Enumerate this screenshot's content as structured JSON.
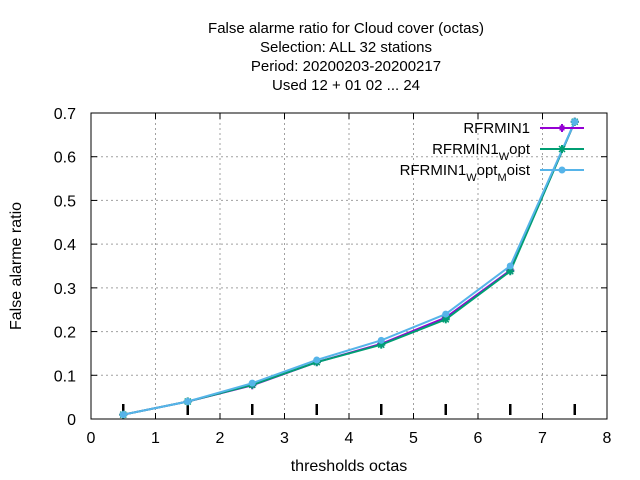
{
  "chart_data": {
    "type": "line",
    "title_lines": [
      "False alarme ratio  for Cloud cover (octas)",
      "Selection: ALL     32 stations",
      "Period: 20200203-20200217",
      "Used  12 + 01 02 ... 24"
    ],
    "xlabel": "thresholds octas",
    "ylabel": "False alarme ratio",
    "xlim": [
      0,
      8
    ],
    "ylim": [
      0,
      0.7
    ],
    "xticks": [
      0,
      1,
      2,
      3,
      4,
      5,
      6,
      7,
      8
    ],
    "yticks": [
      0,
      0.1,
      0.2,
      0.3,
      0.4,
      0.5,
      0.6,
      0.7
    ],
    "xtick_labels": [
      "0",
      "1",
      "2",
      "3",
      "4",
      "5",
      "6",
      "7",
      "8"
    ],
    "ytick_labels": [
      "0",
      "0.1",
      "0.2",
      "0.3",
      "0.4",
      "0.5",
      "0.6",
      "0.7"
    ],
    "grid": true,
    "legend_position": "top-right",
    "count_marker_x": [
      0.5,
      1.5,
      2.5,
      3.5,
      4.5,
      5.5,
      6.5,
      7.5
    ],
    "x": [
      0.5,
      1.5,
      2.5,
      3.5,
      4.5,
      5.5,
      6.5,
      7.5
    ],
    "series": [
      {
        "name": "RFRMIN1",
        "legend_parts": [
          {
            "text": "RFRMIN1",
            "sub": false
          }
        ],
        "color": "#9400d3",
        "marker": "plus",
        "values": [
          0.01,
          0.04,
          0.077,
          0.13,
          0.172,
          0.232,
          0.34,
          0.68
        ]
      },
      {
        "name": "RFRMIN1_Wopt",
        "legend_parts": [
          {
            "text": "RFRMIN1",
            "sub": false
          },
          {
            "text": "W",
            "sub": true
          },
          {
            "text": "opt",
            "sub": false
          }
        ],
        "color": "#009e73",
        "marker": "star",
        "values": [
          0.01,
          0.04,
          0.078,
          0.13,
          0.17,
          0.228,
          0.338,
          0.68
        ]
      },
      {
        "name": "RFRMIN1_Wopt_Moist",
        "legend_parts": [
          {
            "text": "RFRMIN1",
            "sub": false
          },
          {
            "text": "W",
            "sub": true
          },
          {
            "text": "opt",
            "sub": false
          },
          {
            "text": "M",
            "sub": true
          },
          {
            "text": "oist",
            "sub": false
          }
        ],
        "color": "#56b4e9",
        "marker": "circle",
        "values": [
          0.01,
          0.04,
          0.082,
          0.135,
          0.18,
          0.24,
          0.35,
          0.68
        ]
      }
    ]
  }
}
